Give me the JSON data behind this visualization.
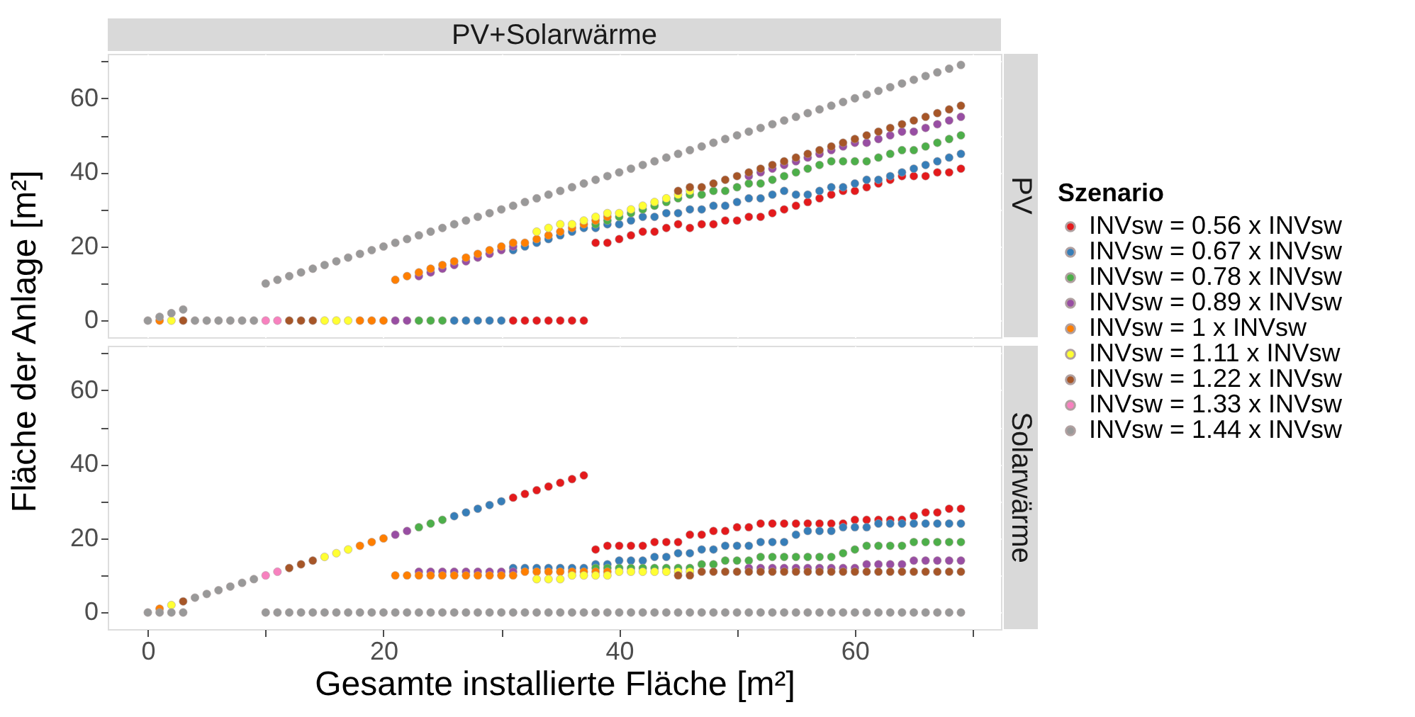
{
  "chart_data": [
    {
      "type": "scatter",
      "title": "PV+Solarwärme",
      "annotations": [
        "PV"
      ],
      "ylabel": "Fläche der Anlage [m²]",
      "legend_title": "Szenario",
      "legend": "right",
      "marker": "circle",
      "grid": true,
      "tick_labels": "y",
      "xlim": [
        -3.4,
        72.4
      ],
      "ylim": [
        -4.5,
        72
      ],
      "xticks": [
        0,
        {
          "value": 10,
          "label": null
        },
        20,
        {
          "value": 30,
          "label": null
        },
        40,
        {
          "value": 50,
          "label": null
        },
        60,
        {
          "value": 70,
          "label": null
        }
      ],
      "yticks": [
        0,
        {
          "value": 10,
          "label": null
        },
        20,
        {
          "value": 30,
          "label": null
        },
        40,
        {
          "value": 50,
          "label": null
        },
        60,
        {
          "value": 70,
          "label": null
        }
      ],
      "series": [
        {
          "name": "INVsw = 0.56 x INVsw",
          "color": "#e41a1c",
          "x": [
            31,
            32,
            33,
            34,
            35,
            36,
            37,
            38,
            39,
            40,
            41,
            42,
            43,
            44,
            45,
            46,
            47,
            48,
            49,
            50,
            51,
            52,
            53,
            54,
            55,
            56,
            57,
            58,
            59,
            60,
            61,
            62,
            63,
            64,
            65,
            66,
            67,
            68,
            69
          ],
          "values": [
            0,
            0,
            0,
            0,
            0,
            0,
            0,
            21,
            21,
            22,
            23,
            24,
            24,
            25,
            26,
            25,
            26,
            26,
            27,
            27,
            28,
            28,
            29,
            30,
            31,
            32,
            33,
            34,
            35,
            35,
            36,
            37,
            38,
            39,
            39,
            39,
            40,
            40,
            41
          ]
        },
        {
          "name": "INVsw = 0.67 x INVsw",
          "color": "#377eb8",
          "x": [
            26,
            27,
            28,
            29,
            30,
            31,
            32,
            33,
            34,
            35,
            36,
            37,
            38,
            39,
            40,
            41,
            42,
            43,
            44,
            45,
            46,
            47,
            48,
            49,
            50,
            51,
            52,
            53,
            54,
            55,
            56,
            57,
            58,
            59,
            60,
            61,
            62,
            63,
            64,
            65,
            66,
            67,
            68,
            69
          ],
          "values": [
            0,
            0,
            0,
            0,
            0,
            19,
            20,
            21,
            22,
            23,
            24,
            25,
            25,
            26,
            26,
            27,
            28,
            28,
            29,
            29,
            30,
            30,
            31,
            31,
            32,
            33,
            33,
            34,
            35,
            34,
            34,
            35,
            36,
            36,
            37,
            38,
            38,
            39,
            40,
            41,
            42,
            43,
            44,
            45
          ]
        },
        {
          "name": "INVsw = 0.78 x INVsw",
          "color": "#4daf4a",
          "x": [
            23,
            24,
            25,
            38,
            39,
            40,
            41,
            42,
            43,
            44,
            45,
            46,
            47,
            48,
            49,
            50,
            51,
            52,
            53,
            54,
            55,
            56,
            57,
            58,
            59,
            60,
            61,
            62,
            63,
            64,
            65,
            66,
            67,
            68,
            69
          ],
          "values": [
            0,
            0,
            0,
            26,
            27,
            28,
            29,
            30,
            31,
            32,
            33,
            34,
            34,
            35,
            35,
            36,
            37,
            37,
            38,
            39,
            40,
            41,
            42,
            43,
            43,
            43,
            43,
            44,
            45,
            46,
            46,
            47,
            48,
            49,
            50
          ]
        },
        {
          "name": "INVsw = 0.89 x INVsw",
          "color": "#984ea3",
          "x": [
            21,
            22,
            23,
            24,
            25,
            26,
            27,
            28,
            29,
            30,
            31,
            51,
            52,
            53,
            54,
            55,
            56,
            57,
            58,
            59,
            60,
            61,
            62,
            63,
            64,
            65,
            66,
            67,
            68,
            69
          ],
          "values": [
            0,
            0,
            12,
            13,
            14,
            15,
            16,
            17,
            18,
            19,
            20,
            39,
            40,
            41,
            42,
            43,
            44,
            45,
            46,
            47,
            48,
            48,
            49,
            50,
            51,
            51,
            52,
            53,
            54,
            55
          ]
        },
        {
          "name": "INVsw = 1 x INVsw",
          "color": "#ff7f00",
          "x": [
            1,
            18,
            19,
            20,
            21,
            22,
            23,
            24,
            25,
            26,
            27,
            28,
            29,
            30,
            31,
            32,
            33,
            34,
            35,
            36,
            37,
            38,
            39
          ],
          "values": [
            0,
            0,
            0,
            0,
            11,
            12,
            13,
            14,
            15,
            16,
            17,
            18,
            19,
            20,
            21,
            21,
            22,
            23,
            24,
            25,
            26,
            27,
            28
          ]
        },
        {
          "name": "INVsw = 1.11 x INVsw",
          "color": "#ffff33",
          "x": [
            2,
            15,
            16,
            17,
            33,
            34,
            35,
            36,
            37,
            38,
            39,
            40,
            41,
            42,
            43,
            44,
            45,
            46
          ],
          "values": [
            0,
            0,
            0,
            0,
            24,
            25,
            26,
            26,
            27,
            28,
            29,
            29,
            30,
            31,
            32,
            33,
            34,
            35
          ]
        },
        {
          "name": "INVsw = 1.22 x INVsw",
          "color": "#a65628",
          "x": [
            3,
            12,
            13,
            14,
            45,
            46,
            47,
            48,
            49,
            50,
            51,
            52,
            53,
            54,
            55,
            56,
            57,
            58,
            59,
            60,
            61,
            62,
            63,
            64,
            65,
            66,
            67,
            68,
            69
          ],
          "values": [
            0,
            0,
            0,
            0,
            35,
            36,
            36,
            37,
            38,
            39,
            40,
            41,
            42,
            43,
            44,
            45,
            46,
            47,
            48,
            49,
            50,
            51,
            52,
            53,
            54,
            55,
            56,
            57,
            58
          ]
        },
        {
          "name": "INVsw = 1.33 x INVsw",
          "color": "#f781bf",
          "x": [
            10,
            11
          ],
          "values": [
            0,
            0
          ]
        },
        {
          "name": "INVsw = 1.44 x INVsw",
          "color": "#999999",
          "x": [
            0,
            1,
            2,
            3,
            4,
            5,
            6,
            7,
            8,
            9,
            10,
            11,
            12,
            13,
            14,
            15,
            16,
            17,
            18,
            19,
            20,
            21,
            22,
            23,
            24,
            25,
            26,
            27,
            28,
            29,
            30,
            31,
            32,
            33,
            34,
            35,
            36,
            37,
            38,
            39,
            40,
            41,
            42,
            43,
            44,
            45,
            46,
            47,
            48,
            49,
            50,
            51,
            52,
            53,
            54,
            55,
            56,
            57,
            58,
            59,
            60,
            61,
            62,
            63,
            64,
            65,
            66,
            67,
            68,
            69
          ],
          "values": [
            0,
            1,
            2,
            3,
            0,
            0,
            0,
            0,
            0,
            0,
            10,
            11,
            12,
            13,
            14,
            15,
            16,
            17,
            18,
            19,
            20,
            21,
            22,
            23,
            24,
            25,
            26,
            27,
            28,
            29,
            30,
            31,
            32,
            33,
            34,
            35,
            36,
            37,
            38,
            39,
            40,
            41,
            42,
            43,
            44,
            45,
            46,
            47,
            48,
            49,
            50,
            51,
            52,
            53,
            54,
            55,
            56,
            57,
            58,
            59,
            60,
            61,
            62,
            63,
            64,
            65,
            66,
            67,
            68,
            69
          ]
        }
      ]
    },
    {
      "type": "scatter",
      "annotations": [
        "Solarwärme"
      ],
      "xlabel": "Gesamte installierte Fläche [m²]",
      "marker": "circle",
      "grid": true,
      "xlim": [
        -3.4,
        72.4
      ],
      "ylim": [
        -4.5,
        72
      ],
      "xticks": [
        0,
        {
          "value": 10,
          "label": null
        },
        20,
        {
          "value": 30,
          "label": null
        },
        40,
        {
          "value": 50,
          "label": null
        },
        60,
        {
          "value": 70,
          "label": null
        }
      ],
      "yticks": [
        0,
        {
          "value": 10,
          "label": null
        },
        20,
        {
          "value": 30,
          "label": null
        },
        40,
        {
          "value": 50,
          "label": null
        },
        60,
        {
          "value": 70,
          "label": null
        }
      ],
      "series": [
        {
          "color": "#e41a1c",
          "x": [
            31,
            32,
            33,
            34,
            35,
            36,
            37,
            38,
            39,
            40,
            41,
            42,
            43,
            44,
            45,
            46,
            47,
            48,
            49,
            50,
            51,
            52,
            53,
            54,
            55,
            56,
            57,
            58,
            59,
            60,
            61,
            62,
            63,
            64,
            65,
            66,
            67,
            68,
            69
          ],
          "values": [
            31,
            32,
            33,
            34,
            35,
            36,
            37,
            17,
            18,
            18,
            18,
            18,
            19,
            19,
            19,
            21,
            21,
            22,
            22,
            23,
            23,
            24,
            24,
            24,
            24,
            24,
            24,
            24,
            24,
            25,
            25,
            25,
            25,
            25,
            26,
            27,
            27,
            28,
            28
          ]
        },
        {
          "color": "#377eb8",
          "x": [
            26,
            27,
            28,
            29,
            30,
            31,
            32,
            33,
            34,
            35,
            36,
            37,
            38,
            39,
            40,
            41,
            42,
            43,
            44,
            45,
            46,
            47,
            48,
            49,
            50,
            51,
            52,
            53,
            54,
            55,
            56,
            57,
            58,
            59,
            60,
            61,
            62,
            63,
            64,
            65,
            66,
            67,
            68,
            69
          ],
          "values": [
            26,
            27,
            28,
            29,
            30,
            12,
            12,
            12,
            12,
            12,
            12,
            12,
            13,
            13,
            14,
            14,
            14,
            15,
            15,
            16,
            16,
            17,
            17,
            18,
            18,
            18,
            19,
            19,
            19,
            21,
            22,
            22,
            22,
            23,
            23,
            23,
            24,
            24,
            24,
            24,
            24,
            24,
            24,
            24
          ]
        },
        {
          "color": "#4daf4a",
          "x": [
            23,
            24,
            25,
            38,
            39,
            40,
            41,
            42,
            43,
            44,
            45,
            46,
            47,
            48,
            49,
            50,
            51,
            52,
            53,
            54,
            55,
            56,
            57,
            58,
            59,
            60,
            61,
            62,
            63,
            64,
            65,
            66,
            67,
            68,
            69
          ],
          "values": [
            23,
            24,
            25,
            12,
            12,
            12,
            12,
            12,
            12,
            12,
            12,
            12,
            13,
            13,
            14,
            14,
            14,
            15,
            15,
            15,
            15,
            15,
            15,
            15,
            16,
            17,
            18,
            18,
            18,
            18,
            19,
            19,
            19,
            19,
            19
          ]
        },
        {
          "color": "#984ea3",
          "x": [
            21,
            22,
            23,
            24,
            25,
            26,
            27,
            28,
            29,
            30,
            31,
            51,
            52,
            53,
            54,
            55,
            56,
            57,
            58,
            59,
            60,
            61,
            62,
            63,
            64,
            65,
            66,
            67,
            68,
            69
          ],
          "values": [
            21,
            22,
            11,
            11,
            11,
            11,
            11,
            11,
            11,
            11,
            11,
            12,
            12,
            12,
            12,
            12,
            12,
            12,
            12,
            12,
            12,
            13,
            13,
            13,
            13,
            14,
            14,
            14,
            14,
            14
          ]
        },
        {
          "color": "#ff7f00",
          "x": [
            1,
            18,
            19,
            20,
            21,
            22,
            23,
            24,
            25,
            26,
            27,
            28,
            29,
            30,
            31,
            32,
            33,
            34,
            35,
            36,
            37,
            38,
            39
          ],
          "values": [
            1,
            18,
            19,
            20,
            10,
            10,
            10,
            10,
            10,
            10,
            10,
            10,
            10,
            10,
            10,
            11,
            11,
            11,
            11,
            11,
            11,
            11,
            11
          ]
        },
        {
          "color": "#ffff33",
          "x": [
            2,
            15,
            16,
            17,
            33,
            34,
            35,
            36,
            37,
            38,
            39,
            40,
            41,
            42,
            43,
            44,
            45,
            46
          ],
          "values": [
            2,
            15,
            16,
            17,
            9,
            9,
            9,
            10,
            10,
            10,
            10,
            11,
            11,
            11,
            11,
            11,
            11,
            11
          ]
        },
        {
          "color": "#a65628",
          "x": [
            3,
            12,
            13,
            14,
            45,
            46,
            47,
            48,
            49,
            50,
            51,
            52,
            53,
            54,
            55,
            56,
            57,
            58,
            59,
            60,
            61,
            62,
            63,
            64,
            65,
            66,
            67,
            68,
            69
          ],
          "values": [
            3,
            12,
            13,
            14,
            10,
            10,
            11,
            11,
            11,
            11,
            11,
            11,
            11,
            11,
            11,
            11,
            11,
            11,
            11,
            11,
            11,
            11,
            11,
            11,
            11,
            11,
            11,
            11,
            11
          ]
        },
        {
          "color": "#f781bf",
          "x": [
            10,
            11
          ],
          "values": [
            10,
            11
          ]
        },
        {
          "color": "#999999",
          "x": [
            0,
            1,
            2,
            3,
            4,
            5,
            6,
            7,
            8,
            9,
            10,
            11,
            12,
            13,
            14,
            15,
            16,
            17,
            18,
            19,
            20,
            21,
            22,
            23,
            24,
            25,
            26,
            27,
            28,
            29,
            30,
            31,
            32,
            33,
            34,
            35,
            36,
            37,
            38,
            39,
            40,
            41,
            42,
            43,
            44,
            45,
            46,
            47,
            48,
            49,
            50,
            51,
            52,
            53,
            54,
            55,
            56,
            57,
            58,
            59,
            60,
            61,
            62,
            63,
            64,
            65,
            66,
            67,
            68,
            69
          ],
          "values": [
            0,
            0,
            0,
            0,
            4,
            5,
            6,
            7,
            8,
            9,
            0,
            0,
            0,
            0,
            0,
            0,
            0,
            0,
            0,
            0,
            0,
            0,
            0,
            0,
            0,
            0,
            0,
            0,
            0,
            0,
            0,
            0,
            0,
            0,
            0,
            0,
            0,
            0,
            0,
            0,
            0,
            0,
            0,
            0,
            0,
            0,
            0,
            0,
            0,
            0,
            0,
            0,
            0,
            0,
            0,
            0,
            0,
            0,
            0,
            0,
            0,
            0,
            0,
            0,
            0,
            0,
            0,
            0,
            0,
            0
          ]
        }
      ]
    }
  ]
}
